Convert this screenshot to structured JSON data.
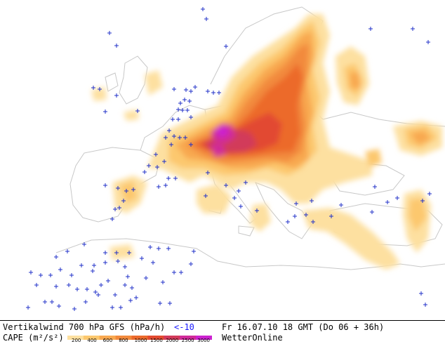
{
  "footer": {
    "title": "Vertikalwind 700 hPa GFS (hPa/h)",
    "threshold": "<-10",
    "datetime": "Fr 16.07.10 18 GMT (Do 06 + 36h)",
    "cape_label": "CAPE (m²/s²)",
    "brand": "WetterOnline",
    "legend_ticks": [
      "200",
      "400",
      "600",
      "800",
      "1000",
      "1500",
      "2000",
      "2500",
      "3000"
    ]
  },
  "colors": {
    "threshold": "#1a1aff",
    "marker": "#2030c8",
    "coast": "#c8c8c8",
    "cape_scale": [
      "#fde0a0",
      "#fcc86e",
      "#f8a850",
      "#f28a3c",
      "#ec6a2c",
      "#e24a30",
      "#d23a5a",
      "#d02a9a",
      "#cc22d0"
    ]
  }
}
